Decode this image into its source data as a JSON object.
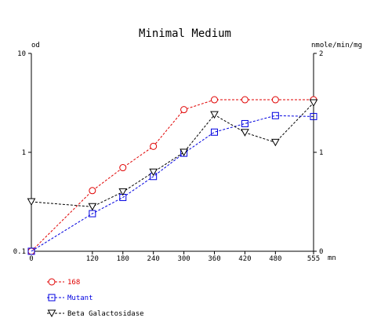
{
  "chart_data": {
    "type": "line",
    "title": "Minimal Medium",
    "x": [
      0,
      120,
      180,
      240,
      300,
      360,
      420,
      480,
      555
    ],
    "x_tick_labels": [
      "0",
      "120",
      "180",
      "240",
      "300",
      "360",
      "420",
      "480",
      "555"
    ],
    "xunit": "mn",
    "xlim": [
      0,
      555
    ],
    "y_left": {
      "label": "od",
      "scale": "log",
      "lim": [
        0.1,
        10
      ],
      "tick_labels": [
        "0.1",
        "1",
        "10"
      ]
    },
    "y_right": {
      "label": "nmole/min/mg",
      "scale": "linear",
      "lim": [
        0,
        2
      ],
      "tick_labels": [
        "0",
        "1",
        "2"
      ]
    },
    "grid": false,
    "legend_position": "bottom-left",
    "series": [
      {
        "name": "168",
        "axis": "left",
        "color": "#e00000",
        "marker": "circle",
        "values": [
          0.1,
          0.41,
          0.7,
          1.15,
          2.7,
          3.4,
          3.4,
          3.4,
          3.4
        ]
      },
      {
        "name": "Mutant",
        "axis": "left",
        "color": "#0000e0",
        "marker": "square",
        "values": [
          0.1,
          0.24,
          0.35,
          0.57,
          0.98,
          1.6,
          1.95,
          2.35,
          2.3
        ]
      },
      {
        "name": "Beta Galactosidase",
        "axis": "right",
        "color": "#000000",
        "marker": "triangle-down",
        "values": [
          0.5,
          0.45,
          0.6,
          0.8,
          1.0,
          1.38,
          1.2,
          1.1,
          1.5
        ]
      }
    ]
  }
}
